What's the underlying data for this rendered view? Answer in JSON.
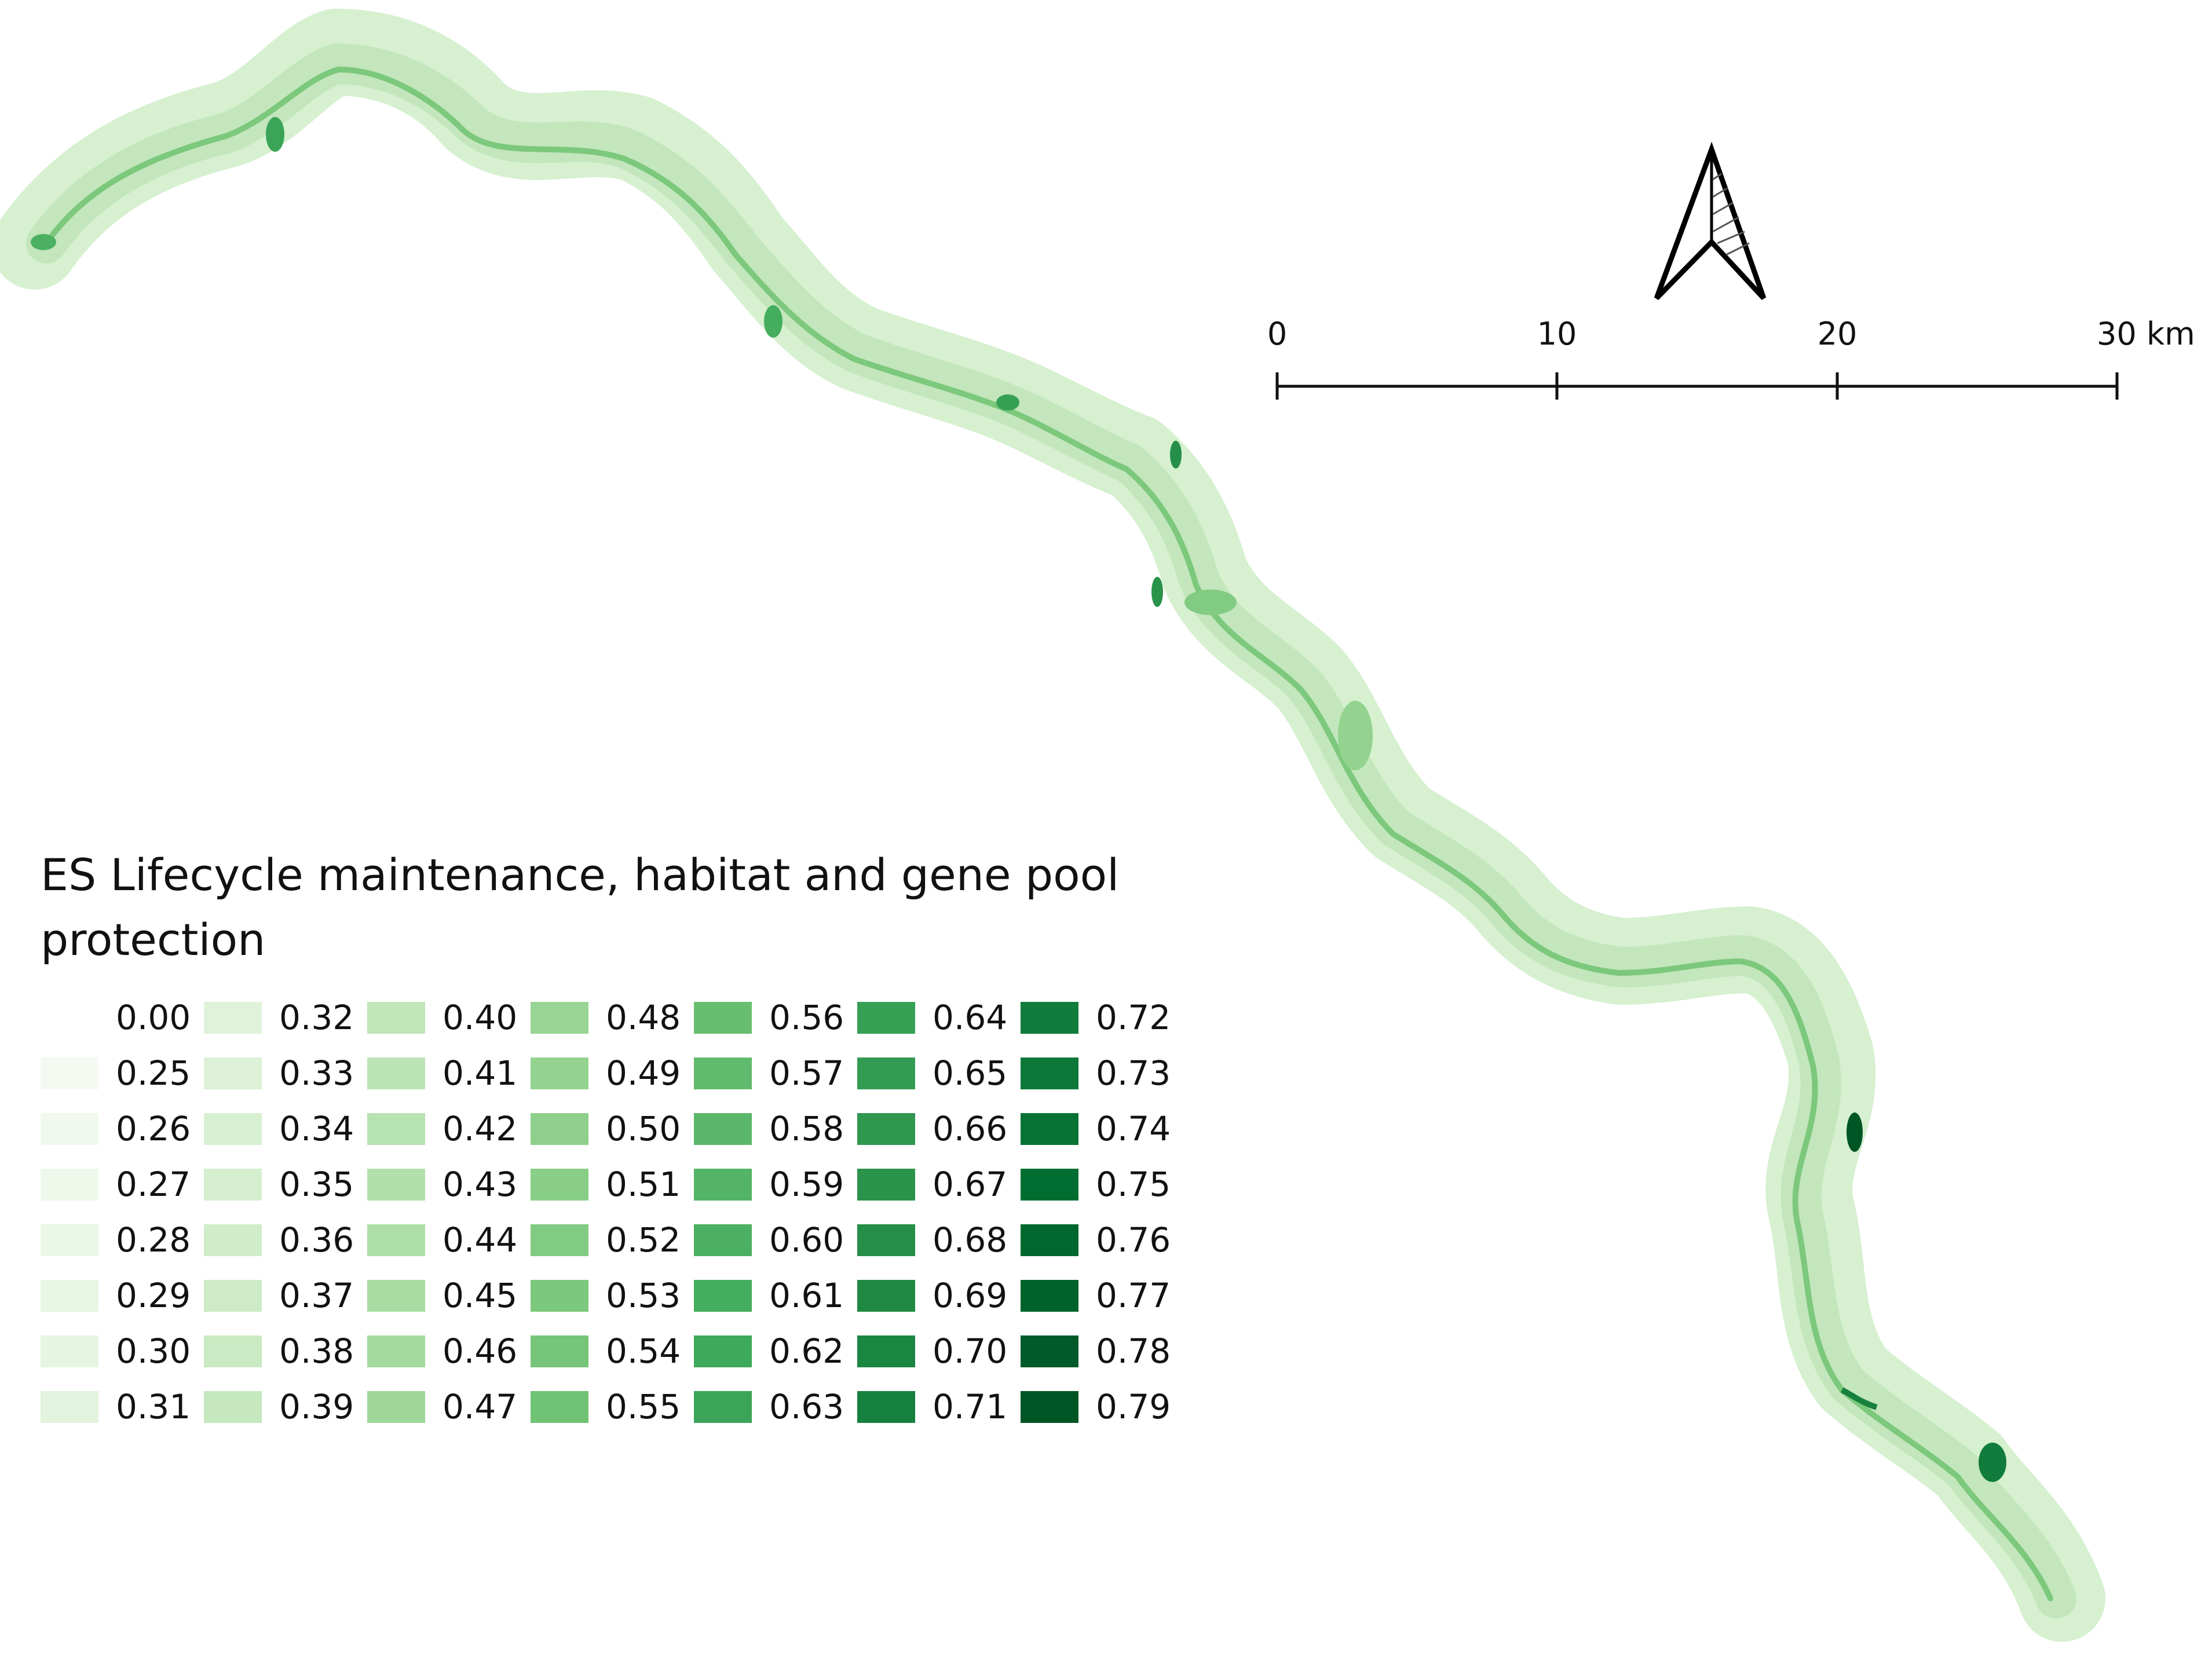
{
  "legend": {
    "title": "ES Lifecycle maintenance, habitat and gene pool protection",
    "items": [
      {
        "label": "0.00",
        "color": "#ffffff"
      },
      {
        "label": "0.25",
        "color": "#f4faf2"
      },
      {
        "label": "0.26",
        "color": "#f1f9ef"
      },
      {
        "label": "0.27",
        "color": "#eef8eb"
      },
      {
        "label": "0.28",
        "color": "#ebf7e8"
      },
      {
        "label": "0.29",
        "color": "#e8f6e4"
      },
      {
        "label": "0.30",
        "color": "#e5f5e1"
      },
      {
        "label": "0.31",
        "color": "#e2f4dd"
      },
      {
        "label": "0.32",
        "color": "#dff2da"
      },
      {
        "label": "0.33",
        "color": "#dcf1d6"
      },
      {
        "label": "0.34",
        "color": "#d8f0d2"
      },
      {
        "label": "0.35",
        "color": "#d4eece"
      },
      {
        "label": "0.36",
        "color": "#d0edca"
      },
      {
        "label": "0.37",
        "color": "#cdebc6"
      },
      {
        "label": "0.38",
        "color": "#c9eac2"
      },
      {
        "label": "0.39",
        "color": "#c5e8be"
      },
      {
        "label": "0.40",
        "color": "#c0e6b9"
      },
      {
        "label": "0.41",
        "color": "#bce4b5"
      },
      {
        "label": "0.42",
        "color": "#b7e2b1"
      },
      {
        "label": "0.43",
        "color": "#b2e0ac"
      },
      {
        "label": "0.44",
        "color": "#addea7"
      },
      {
        "label": "0.45",
        "color": "#a8dca2"
      },
      {
        "label": "0.46",
        "color": "#a3da9d"
      },
      {
        "label": "0.47",
        "color": "#9ed798"
      },
      {
        "label": "0.48",
        "color": "#98d594"
      },
      {
        "label": "0.49",
        "color": "#93d38f"
      },
      {
        "label": "0.50",
        "color": "#8ed08b"
      },
      {
        "label": "0.51",
        "color": "#88ce86"
      },
      {
        "label": "0.52",
        "color": "#82cb82"
      },
      {
        "label": "0.53",
        "color": "#7cc87c"
      },
      {
        "label": "0.54",
        "color": "#76c578"
      },
      {
        "label": "0.55",
        "color": "#70c274"
      },
      {
        "label": "0.56",
        "color": "#68be70"
      },
      {
        "label": "0.57",
        "color": "#61bb6d"
      },
      {
        "label": "0.58",
        "color": "#5ab769"
      },
      {
        "label": "0.59",
        "color": "#53b466"
      },
      {
        "label": "0.60",
        "color": "#4bb062"
      },
      {
        "label": "0.61",
        "color": "#44ad5e"
      },
      {
        "label": "0.62",
        "color": "#3fa95b"
      },
      {
        "label": "0.63",
        "color": "#3ba458"
      },
      {
        "label": "0.64",
        "color": "#37a055"
      },
      {
        "label": "0.65",
        "color": "#339b52"
      },
      {
        "label": "0.66",
        "color": "#2f974e"
      },
      {
        "label": "0.67",
        "color": "#2a934b"
      },
      {
        "label": "0.68",
        "color": "#258e48"
      },
      {
        "label": "0.69",
        "color": "#208a44"
      },
      {
        "label": "0.70",
        "color": "#1b8641"
      },
      {
        "label": "0.71",
        "color": "#16813e"
      },
      {
        "label": "0.72",
        "color": "#117c3b"
      },
      {
        "label": "0.73",
        "color": "#0c7838"
      },
      {
        "label": "0.74",
        "color": "#067335"
      },
      {
        "label": "0.75",
        "color": "#016e31"
      },
      {
        "label": "0.76",
        "color": "#00682e"
      },
      {
        "label": "0.77",
        "color": "#00622b"
      },
      {
        "label": "0.78",
        "color": "#005b28"
      },
      {
        "label": "0.79",
        "color": "#005524"
      }
    ]
  },
  "scale_bar": {
    "labels": [
      "0",
      "10",
      "20",
      "30 km"
    ]
  },
  "north_arrow": {
    "icon": "north-arrow-icon"
  },
  "colors": {
    "corridor_base": "#cfedc8",
    "corridor_mid": "#a8dca2",
    "corridor_dark": "#2a934b",
    "river": "#7cc87c"
  }
}
